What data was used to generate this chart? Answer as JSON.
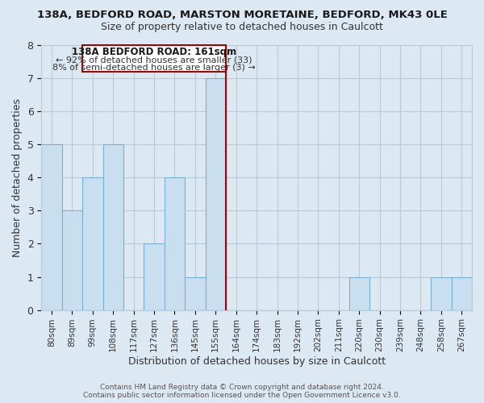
{
  "title_line1": "138A, BEDFORD ROAD, MARSTON MORETAINE, BEDFORD, MK43 0LE",
  "title_line2": "Size of property relative to detached houses in Caulcott",
  "xlabel": "Distribution of detached houses by size in Caulcott",
  "ylabel": "Number of detached properties",
  "bin_labels": [
    "80sqm",
    "89sqm",
    "99sqm",
    "108sqm",
    "117sqm",
    "127sqm",
    "136sqm",
    "145sqm",
    "155sqm",
    "164sqm",
    "174sqm",
    "183sqm",
    "192sqm",
    "202sqm",
    "211sqm",
    "220sqm",
    "230sqm",
    "239sqm",
    "248sqm",
    "258sqm",
    "267sqm"
  ],
  "bar_heights": [
    5,
    3,
    4,
    5,
    0,
    2,
    4,
    1,
    7,
    0,
    0,
    0,
    0,
    0,
    0,
    1,
    0,
    0,
    0,
    1,
    1
  ],
  "highlight_index": 8,
  "bar_face_color": "#c9dff0",
  "bar_edge_color": "#7bafd4",
  "highlight_line_color": "#aa0000",
  "ylim": [
    0,
    8
  ],
  "yticks": [
    0,
    1,
    2,
    3,
    4,
    5,
    6,
    7,
    8
  ],
  "annotation_title": "138A BEDFORD ROAD: 161sqm",
  "annotation_line1": "← 92% of detached houses are smaller (33)",
  "annotation_line2": "8% of semi-detached houses are larger (3) →",
  "footnote1": "Contains HM Land Registry data © Crown copyright and database right 2024.",
  "footnote2": "Contains public sector information licensed under the Open Government Licence v3.0.",
  "bg_color": "#dce8f2",
  "plot_bg_color": "#dce8f2",
  "grid_color": "#b8cad8",
  "title1_fontsize": 9.5,
  "title2_fontsize": 9.0
}
